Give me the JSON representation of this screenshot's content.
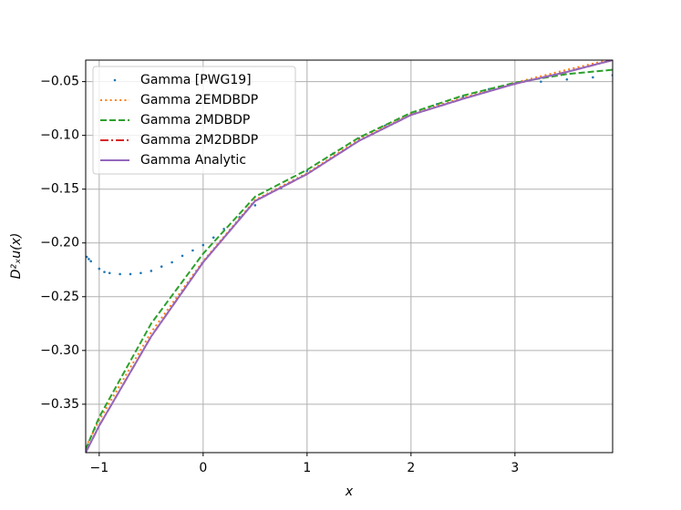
{
  "chart_data": {
    "type": "line",
    "xlabel": "x",
    "ylabel": "D²ₓu(x)",
    "xlim": [
      -1.13,
      3.94
    ],
    "ylim": [
      -0.395,
      -0.03
    ],
    "xticks": [
      {
        "value": -1,
        "label": "−1"
      },
      0,
      1,
      2,
      3
    ],
    "yticks": [
      {
        "value": -0.05,
        "label": "−0.05"
      },
      {
        "value": -0.1,
        "label": "−0.10"
      },
      {
        "value": -0.15,
        "label": "−0.15"
      },
      {
        "value": -0.2,
        "label": "−0.20"
      },
      {
        "value": -0.25,
        "label": "−0.25"
      },
      {
        "value": -0.3,
        "label": "−0.30"
      },
      {
        "value": -0.35,
        "label": "−0.35"
      }
    ],
    "grid": true,
    "legend": "upper left",
    "series": [
      {
        "name": "Gamma [PWG19]",
        "color": "#1f77b4",
        "linestyle": "points",
        "x": [
          -1.12,
          -1.1,
          -1.08,
          -1.0,
          -0.95,
          -0.9,
          -0.8,
          -0.7,
          -0.6,
          -0.5,
          -0.4,
          -0.3,
          -0.2,
          -0.1,
          0,
          0.1,
          0.2,
          0.35,
          0.5,
          0.75,
          1,
          1.25,
          1.5,
          1.75,
          2,
          2.25,
          2.5,
          2.75,
          3,
          3.25,
          3.5,
          3.75,
          3.94
        ],
        "values": [
          -0.213,
          -0.215,
          -0.217,
          -0.224,
          -0.227,
          -0.228,
          -0.229,
          -0.229,
          -0.228,
          -0.226,
          -0.222,
          -0.218,
          -0.212,
          -0.207,
          -0.202,
          -0.195,
          -0.187,
          -0.176,
          -0.165,
          -0.149,
          -0.133,
          -0.117,
          -0.103,
          -0.091,
          -0.08,
          -0.071,
          -0.064,
          -0.057,
          -0.052,
          -0.05,
          -0.048,
          -0.046,
          -0.044
        ]
      },
      {
        "name": "Gamma 2EMDBDP",
        "color": "#ff7f0e",
        "linestyle": "dotted",
        "x": [
          -1.13,
          -1,
          -0.5,
          0,
          0.5,
          1,
          1.5,
          2,
          2.5,
          3,
          3.5,
          3.94
        ],
        "values": [
          -0.39,
          -0.365,
          -0.283,
          -0.217,
          -0.16,
          -0.135,
          -0.104,
          -0.08,
          -0.065,
          -0.051,
          -0.039,
          -0.029
        ]
      },
      {
        "name": "Gamma 2MDBDP",
        "color": "#2ca02c",
        "linestyle": "dashed",
        "x": [
          -1.13,
          -1,
          -0.5,
          0,
          0.5,
          1,
          1.5,
          2,
          2.5,
          3,
          3.5,
          3.94
        ],
        "values": [
          -0.392,
          -0.362,
          -0.275,
          -0.21,
          -0.157,
          -0.132,
          -0.102,
          -0.079,
          -0.063,
          -0.051,
          -0.043,
          -0.039
        ]
      },
      {
        "name": "Gamma 2M2DBDP",
        "color": "#d62728",
        "linestyle": "dashdot",
        "x": [
          -1.13,
          -1,
          -0.5,
          0,
          0.5,
          1,
          1.5,
          2,
          2.5,
          3,
          3.5,
          3.94
        ],
        "values": [
          -0.395,
          -0.37,
          -0.287,
          -0.218,
          -0.161,
          -0.136,
          -0.105,
          -0.081,
          -0.066,
          -0.052,
          -0.041,
          -0.03
        ]
      },
      {
        "name": "Gamma Analytic",
        "color": "#9467bd",
        "linestyle": "solid",
        "x": [
          -1.13,
          -1,
          -0.5,
          0,
          0.5,
          1,
          1.5,
          2,
          2.5,
          3,
          3.5,
          3.94
        ],
        "values": [
          -0.395,
          -0.37,
          -0.287,
          -0.218,
          -0.161,
          -0.136,
          -0.105,
          -0.081,
          -0.066,
          -0.052,
          -0.041,
          -0.03
        ]
      }
    ]
  }
}
